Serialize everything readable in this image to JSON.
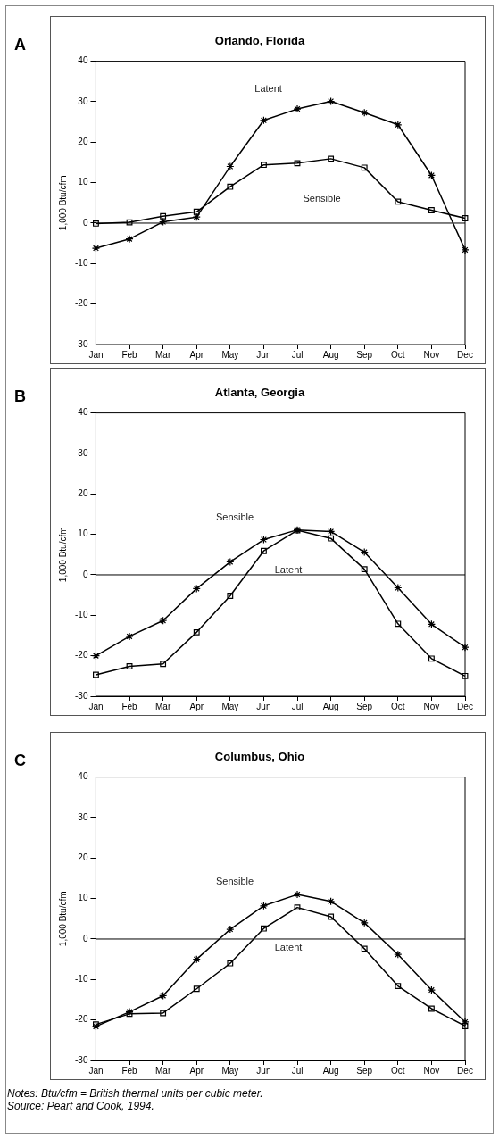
{
  "chart_data": [
    {
      "type": "line",
      "title": "Orlando, Florida",
      "ylabel": "1,000 Btu/cfm",
      "categories": [
        "Jan",
        "Feb",
        "Mar",
        "Apr",
        "May",
        "Jun",
        "Jul",
        "Aug",
        "Sep",
        "Oct",
        "Nov",
        "Dec"
      ],
      "series": [
        {
          "name": "Latent",
          "color": "#000000",
          "marker": "cross",
          "values": [
            -6.2,
            -3.9,
            0.3,
            1.5,
            14,
            25.4,
            28.2,
            30.1,
            27.3,
            24.3,
            11.8,
            -6.6
          ]
        },
        {
          "name": "Sensible",
          "color": "#000000",
          "marker": "square",
          "values": [
            -0.1,
            0.2,
            1.7,
            2.8,
            9,
            14.4,
            14.8,
            15.9,
            13.7,
            5.3,
            3.2,
            1.2
          ]
        }
      ],
      "ylim": [
        -30,
        40
      ],
      "yticks": [
        -30,
        -20,
        -10,
        0,
        10,
        20,
        30,
        40
      ],
      "grid": false,
      "ref_lines": [
        {
          "axis": "y",
          "value": 0
        }
      ],
      "annotations": [
        "A"
      ]
    },
    {
      "type": "line",
      "title": "Atlanta, Georgia",
      "ylabel": "1,000 Btu/cfm",
      "categories": [
        "Jan",
        "Feb",
        "Mar",
        "Apr",
        "May",
        "Jun",
        "Jul",
        "Aug",
        "Sep",
        "Oct",
        "Nov",
        "Dec"
      ],
      "series": [
        {
          "name": "Sensible",
          "color": "#000000",
          "marker": "cross",
          "values": [
            -20,
            -15.2,
            -11.3,
            -3.4,
            3.2,
            8.7,
            11.1,
            10.7,
            5.6,
            -3.2,
            -12.2,
            -17.9
          ]
        },
        {
          "name": "Latent",
          "color": "#000000",
          "marker": "square",
          "values": [
            -24.7,
            -22.6,
            -22,
            -14.2,
            -5.2,
            5.9,
            11,
            9,
            1.4,
            -12.1,
            -20.7,
            -25
          ]
        }
      ],
      "ylim": [
        -30,
        40
      ],
      "yticks": [
        -30,
        -20,
        -10,
        0,
        10,
        20,
        30,
        40
      ],
      "grid": false,
      "ref_lines": [
        {
          "axis": "y",
          "value": 0
        }
      ],
      "annotations": [
        "B"
      ]
    },
    {
      "type": "line",
      "title": "Columbus, Ohio",
      "ylabel": "1,000 Btu/cfm",
      "categories": [
        "Jan",
        "Feb",
        "Mar",
        "Apr",
        "May",
        "Jun",
        "Jul",
        "Aug",
        "Sep",
        "Oct",
        "Nov",
        "Dec"
      ],
      "series": [
        {
          "name": "Sensible",
          "color": "#000000",
          "marker": "cross",
          "values": [
            -21.6,
            -18,
            -14,
            -5,
            2.4,
            8.2,
            11,
            9.3,
            4,
            -3.8,
            -12.6,
            -20.5
          ]
        },
        {
          "name": "Latent",
          "color": "#000000",
          "marker": "square",
          "values": [
            -21.1,
            -18.5,
            -18.3,
            -12.3,
            -6,
            2.6,
            7.8,
            5.5,
            -2.4,
            -11.6,
            -17.2,
            -21.5
          ]
        }
      ],
      "ylim": [
        -30,
        40
      ],
      "yticks": [
        -30,
        -20,
        -10,
        0,
        10,
        20,
        30,
        40
      ],
      "grid": false,
      "ref_lines": [
        {
          "axis": "y",
          "value": 0
        }
      ],
      "annotations": [
        "C",
        "Notes: Btu/cfm = British thermal units per cubic meter.",
        "Source: Peart and Cook, 1994."
      ]
    }
  ]
}
